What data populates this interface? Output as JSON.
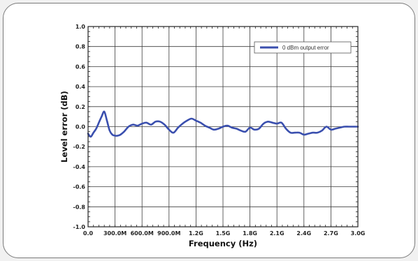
{
  "chart_data": {
    "type": "line",
    "title": "",
    "xlabel": "Frequency (Hz)",
    "ylabel": "Level error (dB)",
    "xlim": [
      0,
      3000000000
    ],
    "ylim": [
      -1.0,
      1.0
    ],
    "x_ticks": [
      0,
      300000000,
      600000000,
      900000000,
      1200000000,
      1500000000,
      1800000000,
      2100000000,
      2400000000,
      2700000000,
      3000000000
    ],
    "x_tick_labels": [
      "0.0",
      "300.0M",
      "600.0M",
      "900.0M",
      "1.2G",
      "1.5G",
      "1.8G",
      "2.1G",
      "2.4G",
      "2.7G",
      "3.0G"
    ],
    "y_ticks": [
      -1.0,
      -0.8,
      -0.6,
      -0.4,
      -0.2,
      0.0,
      0.2,
      0.4,
      0.6,
      0.8,
      1.0
    ],
    "y_tick_labels": [
      "-1.0",
      "-0.8",
      "-0.6",
      "-0.4",
      "-0.2",
      "0.0",
      "0.2",
      "0.4",
      "0.6",
      "0.8",
      "1.0"
    ],
    "grid": true,
    "legend_position": "top-right",
    "series": [
      {
        "name": "0 dBm output error",
        "color": "#3a4fae",
        "x": [
          0,
          30000000,
          60000000,
          90000000,
          120000000,
          150000000,
          180000000,
          210000000,
          240000000,
          270000000,
          300000000,
          330000000,
          360000000,
          400000000,
          450000000,
          500000000,
          550000000,
          600000000,
          650000000,
          700000000,
          750000000,
          800000000,
          850000000,
          900000000,
          950000000,
          1000000000,
          1050000000,
          1100000000,
          1150000000,
          1200000000,
          1250000000,
          1300000000,
          1350000000,
          1400000000,
          1450000000,
          1500000000,
          1550000000,
          1600000000,
          1650000000,
          1700000000,
          1750000000,
          1800000000,
          1850000000,
          1900000000,
          1950000000,
          2000000000,
          2050000000,
          2100000000,
          2150000000,
          2200000000,
          2250000000,
          2300000000,
          2350000000,
          2400000000,
          2450000000,
          2500000000,
          2550000000,
          2600000000,
          2650000000,
          2700000000,
          2750000000,
          2800000000,
          2850000000,
          2900000000,
          2950000000,
          3000000000
        ],
        "y": [
          -0.07,
          -0.1,
          -0.06,
          -0.02,
          0.04,
          0.1,
          0.15,
          0.06,
          -0.04,
          -0.08,
          -0.09,
          -0.09,
          -0.08,
          -0.05,
          0.0,
          0.02,
          0.01,
          0.03,
          0.04,
          0.02,
          0.05,
          0.05,
          0.02,
          -0.03,
          -0.06,
          -0.01,
          0.03,
          0.06,
          0.08,
          0.06,
          0.04,
          0.01,
          -0.01,
          -0.03,
          -0.02,
          0.0,
          0.01,
          -0.01,
          -0.02,
          -0.04,
          -0.05,
          -0.01,
          -0.03,
          -0.02,
          0.03,
          0.05,
          0.04,
          0.03,
          0.04,
          -0.02,
          -0.06,
          -0.06,
          -0.06,
          -0.08,
          -0.07,
          -0.06,
          -0.06,
          -0.04,
          0.0,
          -0.03,
          -0.02,
          -0.01,
          0.0,
          0.0,
          0.0,
          0.0
        ]
      }
    ]
  }
}
